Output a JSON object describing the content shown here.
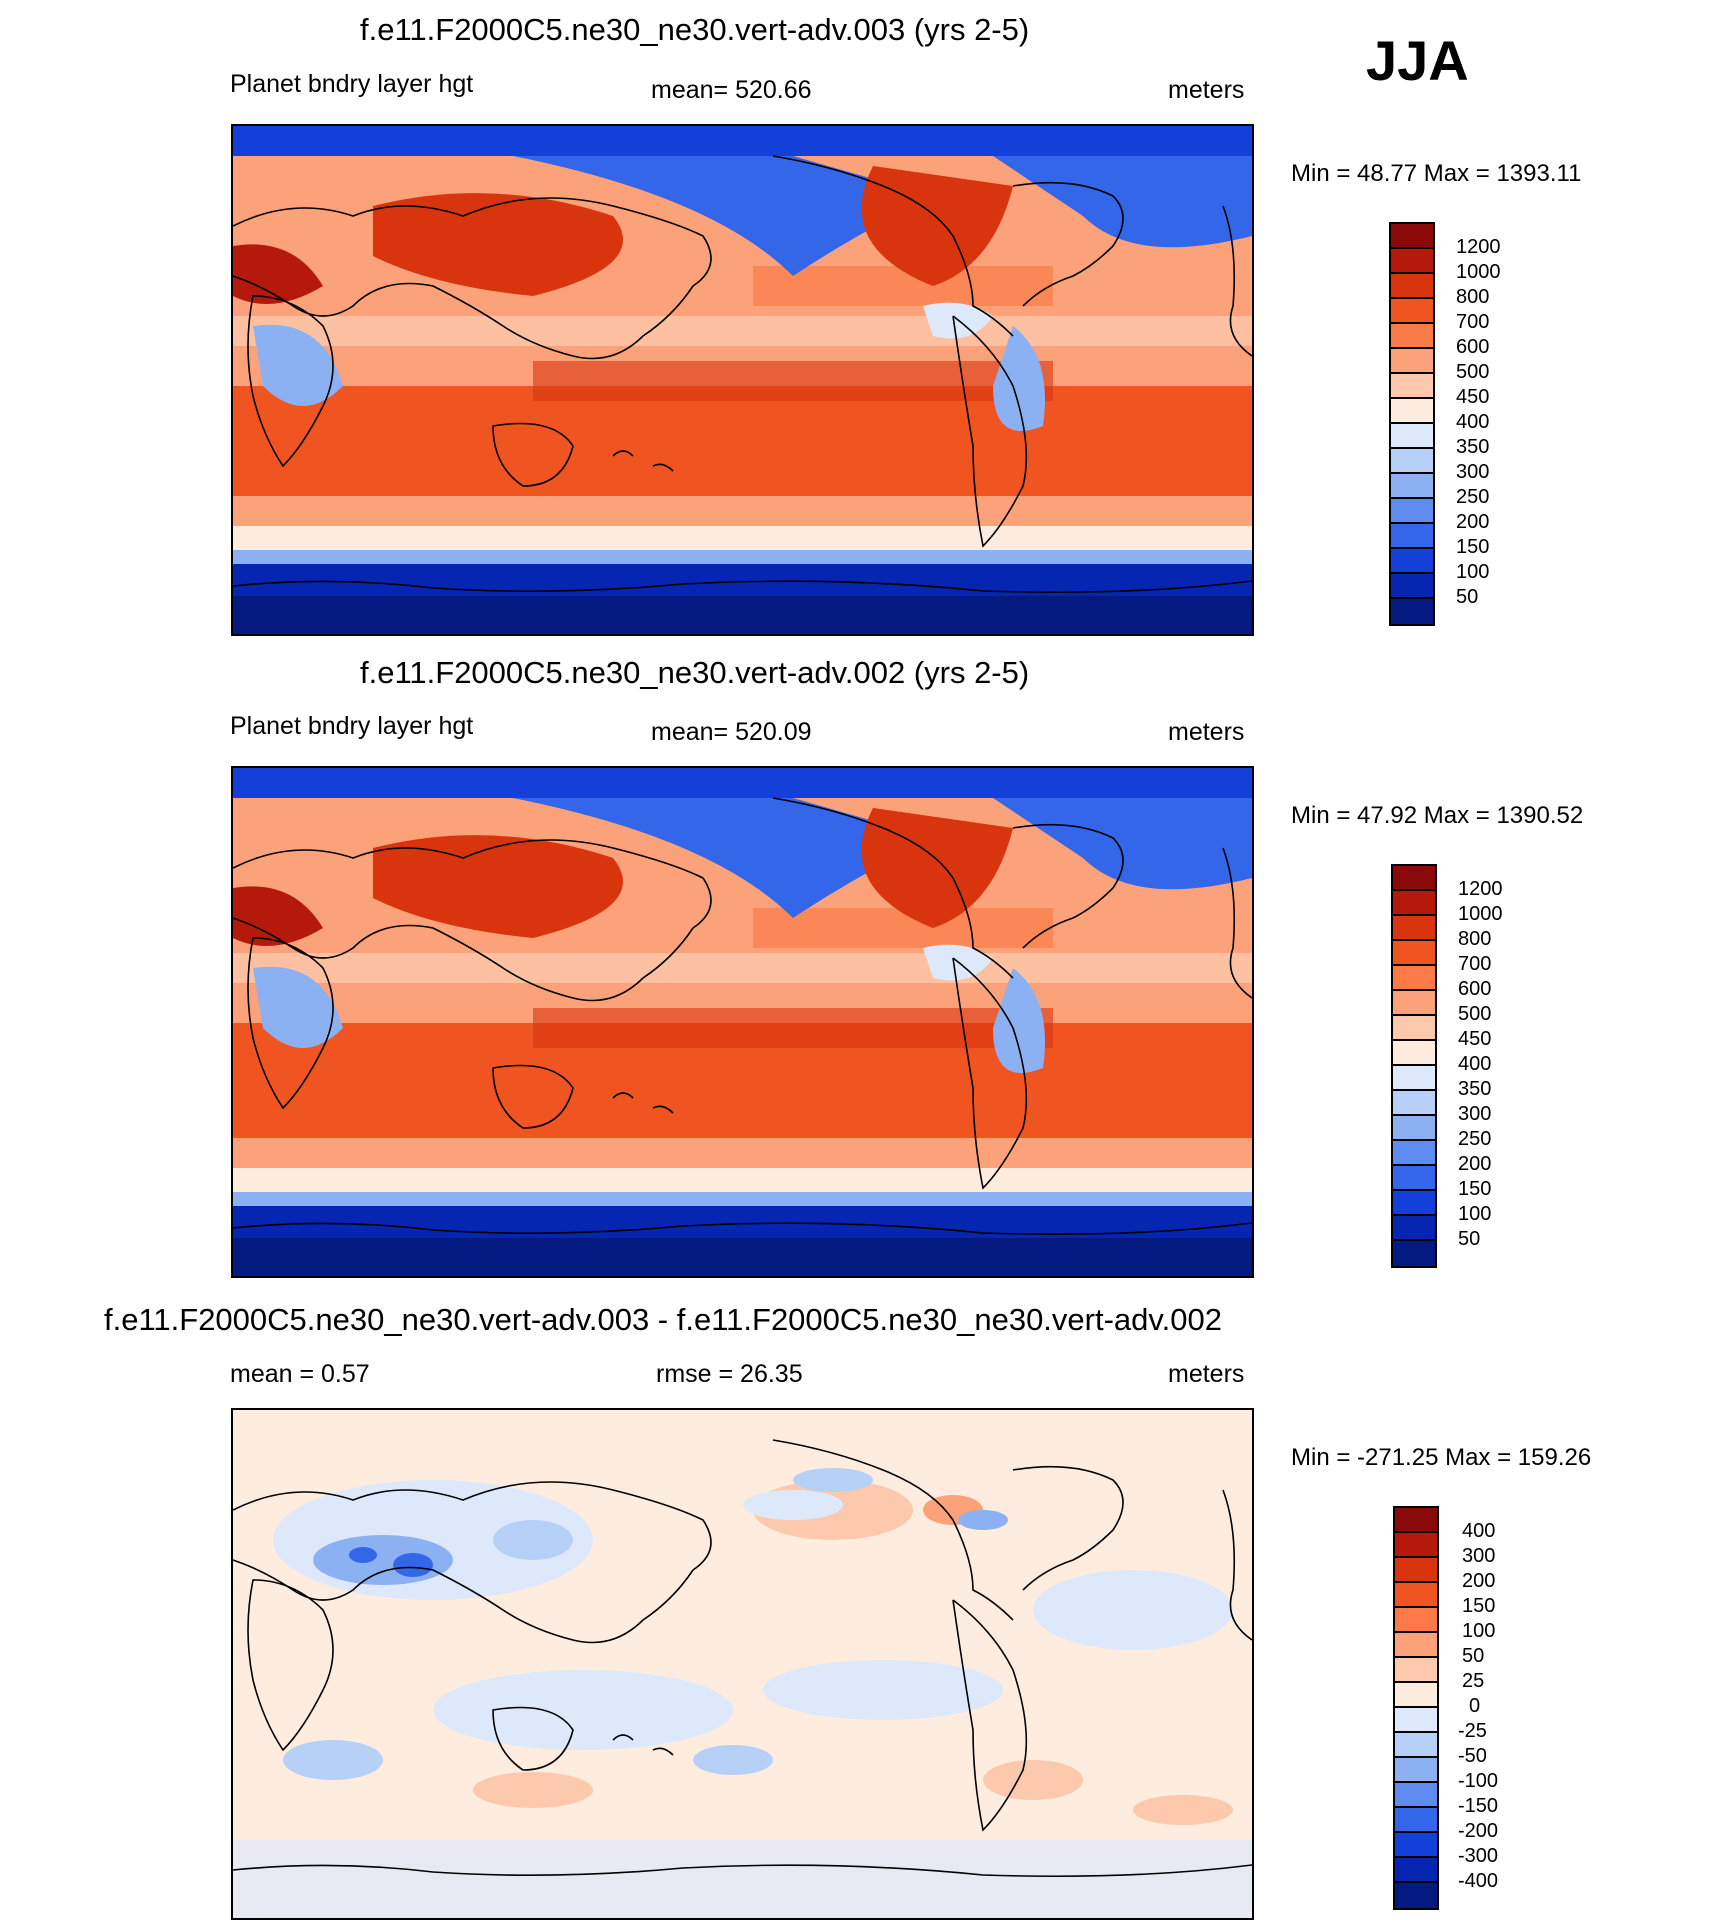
{
  "season": "JJA",
  "panels": [
    {
      "title": "f.e11.F2000C5.ne30_ne30.vert-adv.003 (yrs 2-5)",
      "left": "Planet bndry layer hgt",
      "center": "mean= 520.66",
      "right": "meters",
      "minmax": "Min =  48.77 Max = 1393.11",
      "colorbar": {
        "labels": [
          "1200",
          "1000",
          "800",
          "700",
          "600",
          "500",
          "450",
          "400",
          "350",
          "300",
          "250",
          "200",
          "150",
          "100",
          "50"
        ],
        "colors": [
          "#8a0a0a",
          "#b5190c",
          "#d8340e",
          "#ef5421",
          "#fb7a47",
          "#fca27b",
          "#fdc9ad",
          "#feecdf",
          "#dde9fa",
          "#b6d0f8",
          "#8cb1f3",
          "#5e8cee",
          "#3366e8",
          "#1240d8",
          "#0625b0",
          "#041a80"
        ]
      }
    },
    {
      "title": "f.e11.F2000C5.ne30_ne30.vert-adv.002 (yrs 2-5)",
      "left": "Planet bndry layer hgt",
      "center": "mean= 520.09",
      "right": "meters",
      "minmax": "Min =  47.92 Max = 1390.52",
      "colorbar": {
        "labels": [
          "1200",
          "1000",
          "800",
          "700",
          "600",
          "500",
          "450",
          "400",
          "350",
          "300",
          "250",
          "200",
          "150",
          "100",
          "50"
        ],
        "colors": [
          "#8a0a0a",
          "#b5190c",
          "#d8340e",
          "#ef5421",
          "#fb7a47",
          "#fca27b",
          "#fdc9ad",
          "#feecdf",
          "#dde9fa",
          "#b6d0f8",
          "#8cb1f3",
          "#5e8cee",
          "#3366e8",
          "#1240d8",
          "#0625b0",
          "#041a80"
        ]
      }
    },
    {
      "title": "f.e11.F2000C5.ne30_ne30.vert-adv.003 - f.e11.F2000C5.ne30_ne30.vert-adv.002",
      "left": "mean =   0.57",
      "center": "rmse =  26.35",
      "right": "meters",
      "minmax": "Min = -271.25 Max = 159.26",
      "colorbar": {
        "labels": [
          "400",
          "300",
          "200",
          "150",
          "100",
          "50",
          "25",
          "0",
          "-25",
          "-50",
          "-100",
          "-150",
          "-200",
          "-300",
          "-400"
        ],
        "colors": [
          "#8a0a0a",
          "#b5190c",
          "#d8340e",
          "#ef5421",
          "#fb7a47",
          "#fca27b",
          "#fdc9ad",
          "#feecdf",
          "#dde9fa",
          "#b6d0f8",
          "#8cb1f3",
          "#5e8cee",
          "#3366e8",
          "#1240d8",
          "#0625b0",
          "#041a80"
        ]
      }
    }
  ]
}
